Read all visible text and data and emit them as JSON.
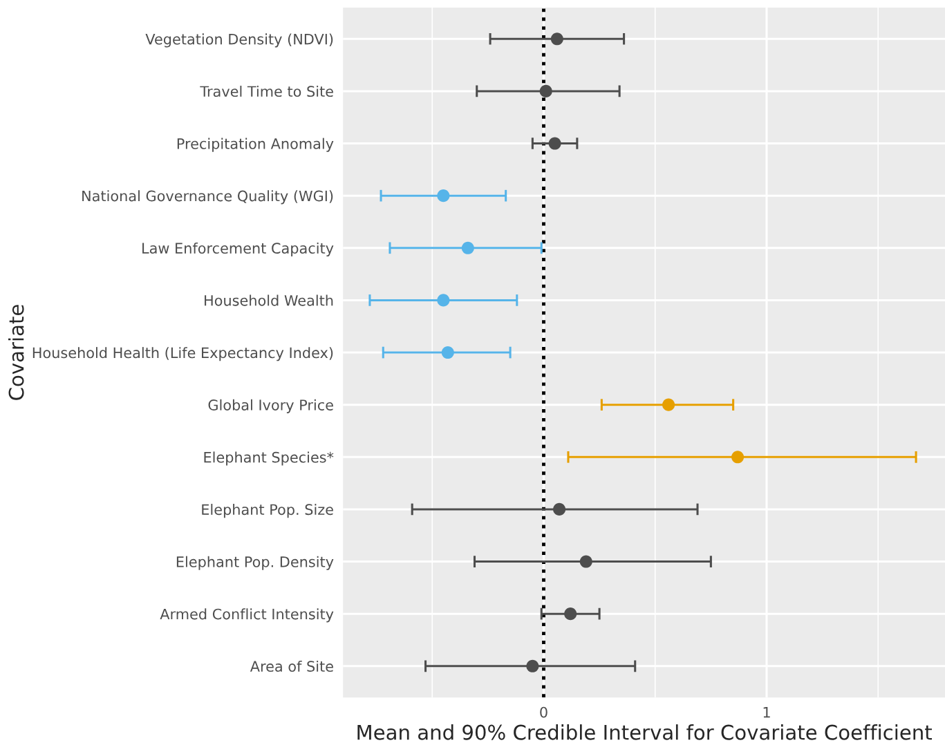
{
  "chart_data": {
    "type": "scatter",
    "orientation": "horizontal",
    "xlabel": "Mean and 90% Credible Interval for Covariate Coefficient",
    "ylabel": "Covariate",
    "categories": [
      "Vegetation Density (NDVI)",
      "Travel Time to Site",
      "Precipitation Anomaly",
      "National Governance Quality (WGI)",
      "Law Enforcement Capacity",
      "Household Wealth",
      "Household Health (Life Expectancy Index)",
      "Global Ivory Price",
      "Elephant Species*",
      "Elephant Pop. Size",
      "Elephant Pop. Density",
      "Armed Conflict Intensity",
      "Area of Site"
    ],
    "values": [
      0.06,
      0.01,
      0.05,
      -0.45,
      -0.34,
      -0.45,
      -0.43,
      0.56,
      0.87,
      0.07,
      0.19,
      0.12,
      -0.05
    ],
    "errors": [
      [
        -0.24,
        0.36
      ],
      [
        -0.3,
        0.34
      ],
      [
        -0.05,
        0.15
      ],
      [
        -0.73,
        -0.17
      ],
      [
        -0.69,
        -0.01
      ],
      [
        -0.78,
        -0.12
      ],
      [
        -0.72,
        -0.15
      ],
      [
        0.26,
        0.85
      ],
      [
        0.11,
        1.67
      ],
      [
        -0.59,
        0.69
      ],
      [
        -0.31,
        0.75
      ],
      [
        -0.01,
        0.25
      ],
      [
        -0.53,
        0.41
      ]
    ],
    "colors": [
      "#4d4d4d",
      "#4d4d4d",
      "#4d4d4d",
      "#56b4e9",
      "#56b4e9",
      "#56b4e9",
      "#56b4e9",
      "#e69f00",
      "#e69f00",
      "#4d4d4d",
      "#4d4d4d",
      "#4d4d4d",
      "#4d4d4d"
    ],
    "xlim": [
      -0.9,
      1.8
    ],
    "xticks": [
      {
        "value": -0.5,
        "label": null
      },
      0,
      {
        "value": 0.5,
        "label": null
      },
      1,
      {
        "value": 1.5,
        "label": null
      }
    ],
    "ref_lines": [
      {
        "axis": "x",
        "value": 0,
        "color": "#000000",
        "line_style": "dotted"
      }
    ],
    "grid": true,
    "marker": "circle",
    "legend": false
  }
}
